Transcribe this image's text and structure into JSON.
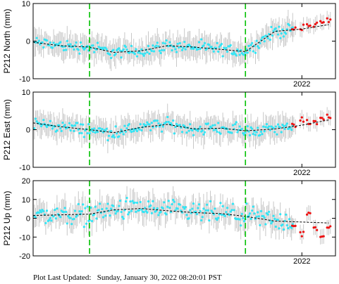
{
  "station": "P212",
  "footer": {
    "prefix": "Plot Last Updated:",
    "date": "Sunday, January 30, 2022 08:20:01 PST"
  },
  "colors": {
    "obs": "#33e5f5",
    "rapid": "#ee1111",
    "errbar": "#c8c8c8",
    "model": "#000000",
    "events": "#00c000"
  },
  "chart_data": [
    {
      "type": "scatter",
      "ylabel": "P212 North (mm)",
      "ylim": [
        -10,
        10
      ],
      "yticks": [
        -10,
        0,
        10
      ],
      "xlim": [
        2020.0,
        2022.25
      ],
      "xticks": [
        {
          "value": 2022.0,
          "label": "2022"
        }
      ],
      "event_lines": [
        2020.42,
        2021.58
      ],
      "grid": false,
      "series": [
        {
          "role": "model",
          "x": [
            2020.0,
            2020.2,
            2020.42,
            2020.6,
            2020.8,
            2021.0,
            2021.2,
            2021.4,
            2021.58,
            2021.8,
            2022.0,
            2022.2
          ],
          "values": [
            -0.3,
            -1.2,
            -1.6,
            -3.0,
            -2.6,
            -1.2,
            -1.6,
            -2.2,
            -2.8,
            2.6,
            3.2,
            4.4
          ]
        },
        {
          "role": "rapid",
          "x": [
            2021.94,
            2022.0,
            2022.05,
            2022.1,
            2022.15,
            2022.2
          ],
          "values": [
            3.0,
            3.4,
            4.2,
            4.6,
            5.0,
            5.6
          ]
        }
      ]
    },
    {
      "type": "scatter",
      "ylabel": "P212 East (mm)",
      "ylim": [
        -10,
        10
      ],
      "yticks": [
        -10,
        0,
        10
      ],
      "xlim": [
        2020.0,
        2022.25
      ],
      "xticks": [
        {
          "value": 2022.0,
          "label": "2022"
        }
      ],
      "event_lines": [
        2020.42,
        2021.58
      ],
      "grid": false,
      "series": [
        {
          "role": "model",
          "x": [
            2020.0,
            2020.2,
            2020.42,
            2020.6,
            2020.8,
            2021.0,
            2021.2,
            2021.4,
            2021.58,
            2021.8,
            2022.0,
            2022.2
          ],
          "values": [
            1.8,
            0.8,
            0.0,
            -0.8,
            0.6,
            1.4,
            0.2,
            0.4,
            -0.3,
            0.2,
            1.2,
            2.6
          ]
        },
        {
          "role": "rapid",
          "x": [
            2021.94,
            2022.0,
            2022.05,
            2022.1,
            2022.15,
            2022.2
          ],
          "values": [
            1.4,
            2.6,
            1.8,
            2.2,
            3.0,
            3.6
          ]
        }
      ]
    },
    {
      "type": "scatter",
      "ylabel": "P212 Up (mm)",
      "ylim": [
        -20,
        20
      ],
      "yticks": [
        -20,
        -10,
        0,
        10,
        20
      ],
      "xlim": [
        2020.0,
        2022.25
      ],
      "xticks": [
        {
          "value": 2022.0,
          "label": "2022"
        }
      ],
      "event_lines": [
        2020.42,
        2021.58
      ],
      "grid": false,
      "series": [
        {
          "role": "model",
          "x": [
            2020.0,
            2020.2,
            2020.42,
            2020.6,
            2020.8,
            2021.0,
            2021.2,
            2021.4,
            2021.58,
            2021.8,
            2022.0,
            2022.2
          ],
          "values": [
            1.5,
            1.8,
            2.2,
            4.5,
            5.2,
            4.0,
            3.0,
            2.5,
            1.0,
            -1.5,
            -2.0,
            -2.5
          ]
        },
        {
          "role": "rapid",
          "x": [
            2021.94,
            2022.0,
            2022.05,
            2022.1,
            2022.15,
            2022.2
          ],
          "values": [
            -4.0,
            -8.0,
            2.0,
            -6.0,
            -10.0,
            -5.0
          ]
        }
      ]
    }
  ]
}
